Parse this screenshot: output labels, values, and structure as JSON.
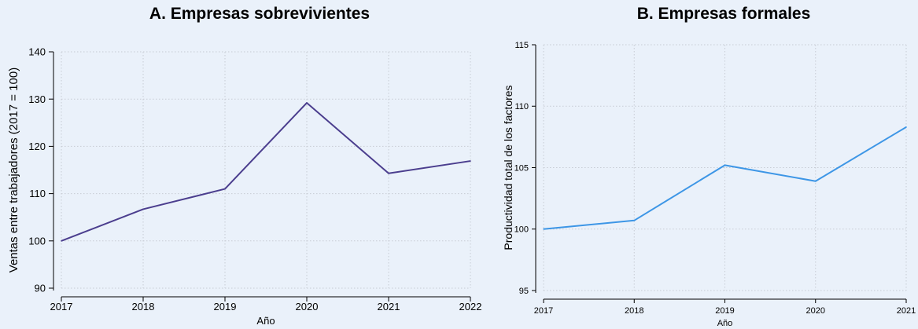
{
  "chart_data": [
    {
      "type": "line",
      "title": "A. Empresas sobrevivientes",
      "xlabel": "Año",
      "ylabel": "Ventas entre trabajadores (2017 = 100)",
      "x": [
        2017,
        2018,
        2019,
        2020,
        2021,
        2022
      ],
      "x_ticks": [
        "2017",
        "2018",
        "2019",
        "2020",
        "2021",
        "2022"
      ],
      "y_ticks": [
        "90",
        "100",
        "110",
        "120",
        "130",
        "140"
      ],
      "ylim": [
        90,
        140
      ],
      "grid": true,
      "series": [
        {
          "values": [
            100,
            106.7,
            111,
            129.2,
            114.3,
            116.9
          ],
          "color": "#4b3e8e"
        }
      ]
    },
    {
      "type": "line",
      "title": "B. Empresas formales",
      "xlabel": "Año",
      "ylabel": "Productividad total de los factores",
      "x": [
        2017,
        2018,
        2019,
        2020,
        2021
      ],
      "x_ticks": [
        "2017",
        "2018",
        "2019",
        "2020",
        "2021"
      ],
      "y_ticks": [
        "95",
        "100",
        "105",
        "110",
        "115"
      ],
      "ylim": [
        95,
        115
      ],
      "grid": true,
      "series": [
        {
          "values": [
            100,
            100.7,
            105.2,
            103.9,
            108.3
          ],
          "color": "#3d96e6"
        }
      ]
    }
  ]
}
